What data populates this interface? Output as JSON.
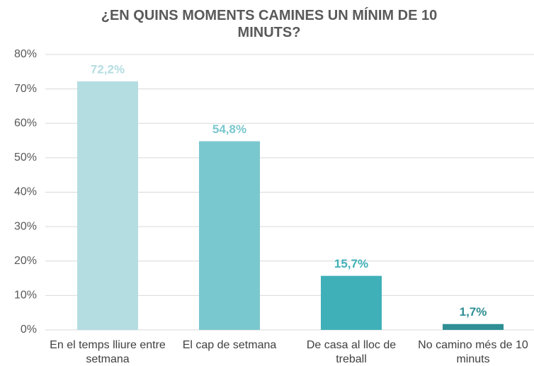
{
  "chart_data": {
    "type": "bar",
    "title": "¿EN QUINS MOMENTS CAMINES UN MÍNIM DE 10 MINUTS?",
    "categories": [
      "En el temps lliure entre setmana",
      "El cap de setmana",
      "De casa al lloc de treball",
      "No camino més de 10 minuts"
    ],
    "values": [
      72.2,
      54.8,
      15.7,
      1.7
    ],
    "value_labels": [
      "72,2%",
      "54,8%",
      "15,7%",
      "1,7%"
    ],
    "colors": [
      "#b4dde2",
      "#7ac8cf",
      "#40b0b8",
      "#2f8f95"
    ],
    "ylim": [
      0,
      80
    ],
    "yticks": [
      {
        "value": 0,
        "label": "0%"
      },
      {
        "value": 10,
        "label": "10%"
      },
      {
        "value": 20,
        "label": "20%"
      },
      {
        "value": 30,
        "label": "30%"
      },
      {
        "value": 40,
        "label": "40%"
      },
      {
        "value": 50,
        "label": "50%"
      },
      {
        "value": 60,
        "label": "60%"
      },
      {
        "value": 70,
        "label": "70%"
      },
      {
        "value": 80,
        "label": "80%"
      }
    ],
    "grid": true
  }
}
